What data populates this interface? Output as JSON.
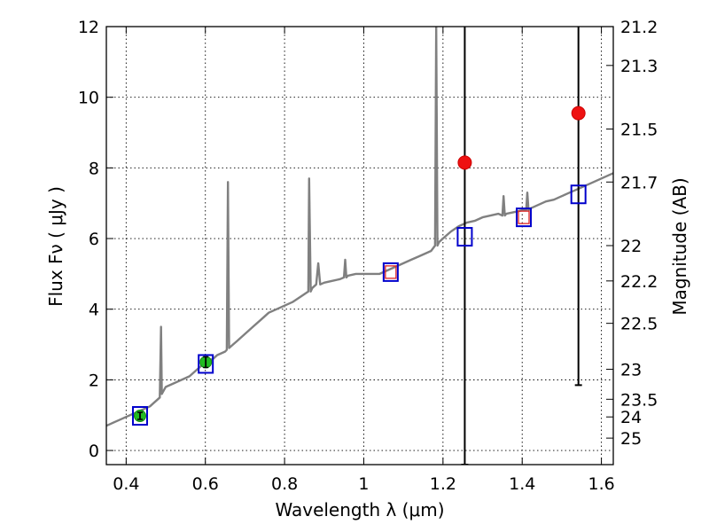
{
  "chart_data": {
    "type": "line",
    "xlabel": "Wavelength  λ (μm)",
    "ylabel": "Flux  Fν  ( μJy )",
    "ylabel_right": "Magnitude (AB)",
    "xlim": [
      0.35,
      1.63
    ],
    "ylim": [
      -0.4,
      12
    ],
    "grid": true,
    "x_ticks": [
      "0.4",
      "0.6",
      "0.8",
      "1",
      "1.2",
      "1.4",
      "1.6"
    ],
    "y_ticks": [
      "0",
      "2",
      "4",
      "6",
      "8",
      "10",
      "12"
    ],
    "right_ticks": [
      {
        "label": "21.2",
        "flux": 12.0
      },
      {
        "label": "21.3",
        "flux": 10.9
      },
      {
        "label": "21.5",
        "flux": 9.1
      },
      {
        "label": "21.7",
        "flux": 7.6
      },
      {
        "label": "22",
        "flux": 5.8
      },
      {
        "label": "22.2",
        "flux": 4.8
      },
      {
        "label": "22.5",
        "flux": 3.6
      },
      {
        "label": "23",
        "flux": 2.3
      },
      {
        "label": "23.5",
        "flux": 1.45
      },
      {
        "label": "24",
        "flux": 0.95
      },
      {
        "label": "25",
        "flux": 0.35
      }
    ],
    "series": [
      {
        "kind": "spectrum",
        "color": "#808080",
        "x": [
          0.35,
          0.36,
          0.37,
          0.38,
          0.39,
          0.4,
          0.41,
          0.42,
          0.43,
          0.44,
          0.45,
          0.46,
          0.47,
          0.48,
          0.485,
          0.488,
          0.49,
          0.495,
          0.5,
          0.51,
          0.52,
          0.53,
          0.54,
          0.55,
          0.56,
          0.57,
          0.58,
          0.59,
          0.6,
          0.61,
          0.62,
          0.63,
          0.64,
          0.65,
          0.654,
          0.657,
          0.66,
          0.67,
          0.68,
          0.7,
          0.72,
          0.74,
          0.76,
          0.78,
          0.8,
          0.82,
          0.84,
          0.86,
          0.862,
          0.866,
          0.87,
          0.88,
          0.885,
          0.89,
          0.9,
          0.92,
          0.94,
          0.95,
          0.953,
          0.956,
          0.96,
          0.98,
          1.0,
          1.02,
          1.04,
          1.06,
          1.08,
          1.1,
          1.12,
          1.14,
          1.16,
          1.17,
          1.18,
          1.183,
          1.186,
          1.19,
          1.2,
          1.22,
          1.24,
          1.26,
          1.28,
          1.3,
          1.32,
          1.34,
          1.35,
          1.353,
          1.356,
          1.36,
          1.38,
          1.4,
          1.41,
          1.413,
          1.416,
          1.42,
          1.44,
          1.46,
          1.48,
          1.5,
          1.52,
          1.54,
          1.56,
          1.58,
          1.6,
          1.62,
          1.63
        ],
        "y": [
          0.7,
          0.75,
          0.8,
          0.85,
          0.9,
          0.95,
          1.0,
          1.05,
          1.1,
          1.15,
          1.2,
          1.25,
          1.35,
          1.45,
          1.5,
          3.5,
          1.6,
          1.7,
          1.8,
          1.85,
          1.9,
          1.95,
          2.0,
          2.05,
          2.1,
          2.2,
          2.3,
          2.4,
          2.5,
          2.55,
          2.6,
          2.7,
          2.75,
          2.8,
          2.85,
          7.6,
          2.9,
          3.0,
          3.1,
          3.3,
          3.5,
          3.7,
          3.9,
          4.0,
          4.1,
          4.2,
          4.35,
          4.5,
          7.7,
          4.5,
          4.6,
          4.7,
          5.3,
          4.7,
          4.75,
          4.8,
          4.85,
          4.9,
          5.4,
          4.9,
          4.95,
          5.0,
          5.0,
          5.0,
          5.0,
          5.1,
          5.2,
          5.3,
          5.4,
          5.5,
          5.6,
          5.65,
          5.8,
          12.0,
          5.8,
          5.9,
          6.0,
          6.2,
          6.35,
          6.45,
          6.5,
          6.6,
          6.65,
          6.7,
          6.65,
          7.2,
          6.65,
          6.7,
          6.75,
          6.8,
          6.8,
          7.3,
          6.8,
          6.85,
          6.95,
          7.05,
          7.1,
          7.2,
          7.3,
          7.4,
          7.5,
          7.6,
          7.7,
          7.8,
          7.85
        ]
      },
      {
        "kind": "model-photometry",
        "marker": "open-square",
        "color": "#0000cc",
        "x": [
          0.435,
          0.601,
          1.068,
          1.255,
          1.404,
          1.542
        ],
        "y": [
          0.98,
          2.45,
          5.05,
          6.05,
          6.6,
          7.25
        ]
      },
      {
        "kind": "measured-photometry",
        "marker": "filled-circle",
        "color": "#22bb22",
        "x": [
          0.435,
          0.601
        ],
        "y": [
          0.98,
          2.5
        ],
        "err": [
          0.1,
          0.15
        ]
      },
      {
        "kind": "upper-limits",
        "marker": "filled-circle",
        "color": "#ee1111",
        "x": [
          1.255,
          1.542
        ],
        "y": [
          8.15,
          9.55
        ],
        "err_low": [
          -0.4,
          1.85
        ],
        "err_high": [
          12.0,
          12.0
        ]
      },
      {
        "kind": "band-marker",
        "marker": "small-open-square",
        "color": "#dd2222",
        "x": [
          1.068,
          1.404
        ],
        "y": [
          5.05,
          6.6
        ]
      }
    ]
  }
}
